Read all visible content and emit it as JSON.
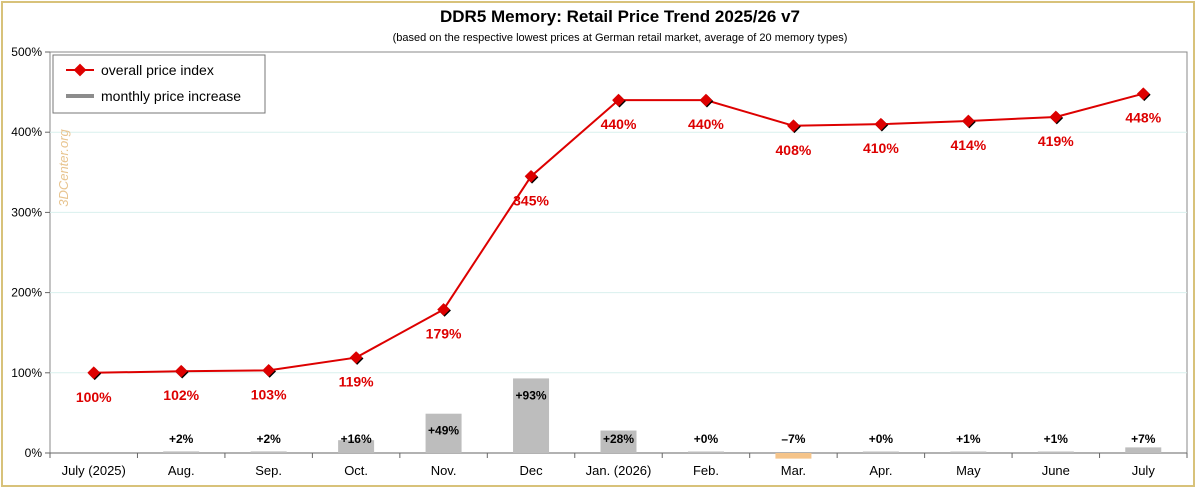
{
  "chart_data": {
    "type": "line",
    "title": "DDR5 Memory: Retail Price Trend 2025/26 v7",
    "subtitle": "(based on the respective lowest prices at German retail market, average of 20 memory types)",
    "watermark": "3DCenter.org",
    "categories": [
      "July (2025)",
      "Aug.",
      "Sep.",
      "Oct.",
      "Nov.",
      "Dec",
      "Jan. (2026)",
      "Feb.",
      "Mar.",
      "Apr.",
      "May",
      "June",
      "July"
    ],
    "ylim": [
      0,
      500
    ],
    "yticks": [
      0,
      100,
      200,
      300,
      400,
      500
    ],
    "ytick_labels": [
      "0%",
      "100%",
      "200%",
      "300%",
      "400%",
      "500%"
    ],
    "grid": true,
    "legend_position": "top-left",
    "colors": {
      "index": "#dd0000",
      "increase": "#bdbdbd",
      "decrease": "#f5c48a",
      "grid": "#d9f0ee"
    },
    "series": [
      {
        "name": "overall price index",
        "kind": "line",
        "values": [
          100,
          102,
          103,
          119,
          179,
          345,
          440,
          440,
          408,
          410,
          414,
          419,
          448
        ],
        "labels": [
          "100%",
          "102%",
          "103%",
          "119%",
          "179%",
          "345%",
          "440%",
          "440%",
          "408%",
          "410%",
          "414%",
          "419%",
          "448%"
        ]
      },
      {
        "name": "monthly price increase",
        "kind": "bar",
        "values": [
          null,
          2,
          2,
          16,
          49,
          93,
          28,
          0,
          -7,
          0,
          1,
          1,
          7
        ],
        "labels": [
          "",
          "+2%",
          "+2%",
          "+16%",
          "+49%",
          "+93%",
          "+28%",
          "+0%",
          "–7%",
          "+0%",
          "+1%",
          "+1%",
          "+7%"
        ]
      }
    ]
  }
}
